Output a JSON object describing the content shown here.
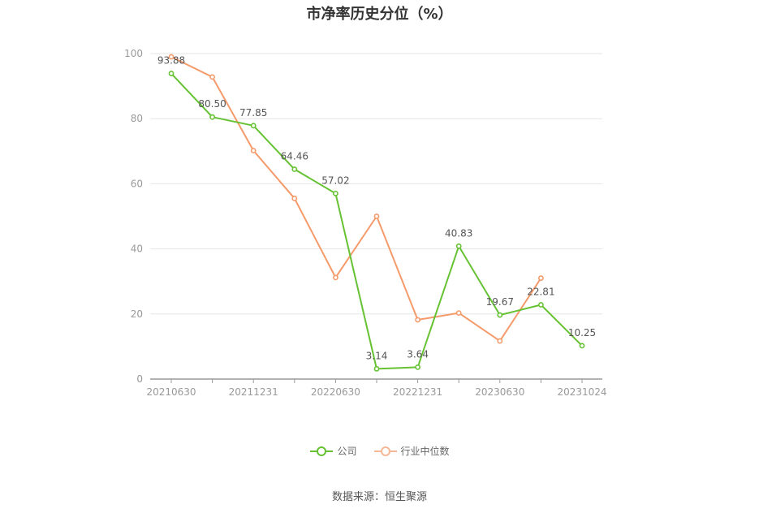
{
  "chart_data": {
    "type": "line",
    "title": "市净率历史分位（%）",
    "x": [
      "20210630",
      "",
      "20211231",
      "",
      "20220630",
      "",
      "20221231",
      "",
      "20230630",
      "",
      "20231024"
    ],
    "xticks": [
      "20210630",
      "20211231",
      "20220630",
      "20221231",
      "20230630",
      "20231024"
    ],
    "ylim": [
      0,
      100
    ],
    "yticks": [
      0,
      20,
      40,
      60,
      80,
      100
    ],
    "grid": true,
    "legend_position": "bottom",
    "series": [
      {
        "name": "公司",
        "color": "#66c233",
        "values": [
          93.88,
          80.5,
          77.85,
          64.46,
          57.02,
          3.14,
          3.64,
          40.83,
          19.67,
          22.81,
          10.25
        ],
        "labels": [
          "93.88",
          "80.50",
          "77.85",
          "64.46",
          "57.02",
          "3.14",
          "3.64",
          "40.83",
          "19.67",
          "22.81",
          "10.25"
        ]
      },
      {
        "name": "行业中位数",
        "color": "#f59a6a",
        "values": [
          99.0,
          92.8,
          70.2,
          55.5,
          31.2,
          50.0,
          18.2,
          20.3,
          11.7,
          31.0,
          null
        ]
      }
    ]
  },
  "source": "数据来源：恒生聚源"
}
